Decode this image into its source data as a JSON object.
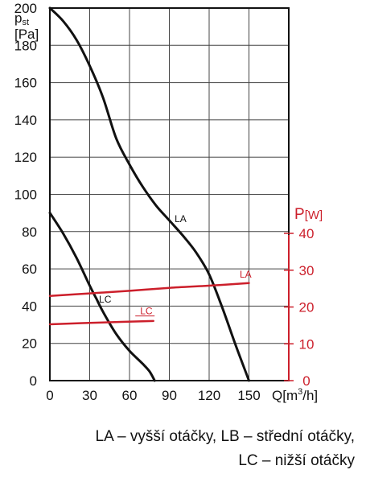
{
  "chart_data": {
    "type": "line",
    "x": {
      "label_main": "Q[m",
      "label_sup": "3",
      "label_end": "/h]",
      "ticks": [
        0,
        30,
        60,
        90,
        120,
        150
      ],
      "range": [
        0,
        180
      ]
    },
    "y_left": {
      "label_main": "p",
      "label_sub": "st",
      "label_unit": "[Pa]",
      "ticks": [
        0,
        20,
        40,
        60,
        80,
        100,
        120,
        140,
        160,
        180,
        200
      ],
      "range": [
        0,
        200
      ]
    },
    "y_right": {
      "label_main": "P",
      "label_unit": "[W]",
      "ticks": [
        0,
        10,
        20,
        30,
        40
      ],
      "range": [
        0,
        40
      ],
      "color": "#cc1f2b"
    },
    "grid": true,
    "series": [
      {
        "name": "LA",
        "axis": "left",
        "color": "#111111",
        "points": [
          [
            0,
            200
          ],
          [
            10,
            193
          ],
          [
            20,
            183
          ],
          [
            30,
            169
          ],
          [
            40,
            152
          ],
          [
            50,
            130
          ],
          [
            60,
            116
          ],
          [
            70,
            104
          ],
          [
            80,
            94
          ],
          [
            90,
            86
          ],
          [
            100,
            78
          ],
          [
            110,
            69
          ],
          [
            120,
            57
          ],
          [
            130,
            39
          ],
          [
            140,
            19
          ],
          [
            150,
            0
          ]
        ]
      },
      {
        "name": "LC",
        "axis": "left",
        "color": "#111111",
        "points": [
          [
            0,
            90
          ],
          [
            10,
            79
          ],
          [
            20,
            66
          ],
          [
            30,
            51
          ],
          [
            35,
            44
          ],
          [
            40,
            37
          ],
          [
            50,
            25
          ],
          [
            60,
            16
          ],
          [
            70,
            9
          ],
          [
            75,
            5
          ],
          [
            79,
            0
          ]
        ]
      },
      {
        "name": "LA",
        "axis": "right",
        "color": "#cc1f2b",
        "points": [
          [
            0,
            23
          ],
          [
            30,
            23.7
          ],
          [
            60,
            24.4
          ],
          [
            90,
            25.2
          ],
          [
            120,
            25.8
          ],
          [
            150,
            26.5
          ]
        ]
      },
      {
        "name": "LC",
        "axis": "right",
        "color": "#cc1f2b",
        "points": [
          [
            0,
            15.3
          ],
          [
            40,
            15.8
          ],
          [
            78,
            16.2
          ]
        ]
      }
    ],
    "annotations": [
      {
        "text": "LA",
        "x": 94,
        "y": 85,
        "axis": "left",
        "color": "#111111"
      },
      {
        "text": "LC",
        "x": 37,
        "y": 42,
        "axis": "left",
        "color": "#111111"
      },
      {
        "text": "LA",
        "x": 143,
        "y": 28,
        "axis": "right",
        "color": "#cc1f2b"
      },
      {
        "text": "LC",
        "x": 68,
        "y": 18,
        "axis": "right",
        "color": "#cc1f2b"
      }
    ]
  },
  "caption": {
    "line1": "LA – vyšší otáčky, LB – střední otáčky,",
    "line2": "LC – nižší otáčky"
  }
}
